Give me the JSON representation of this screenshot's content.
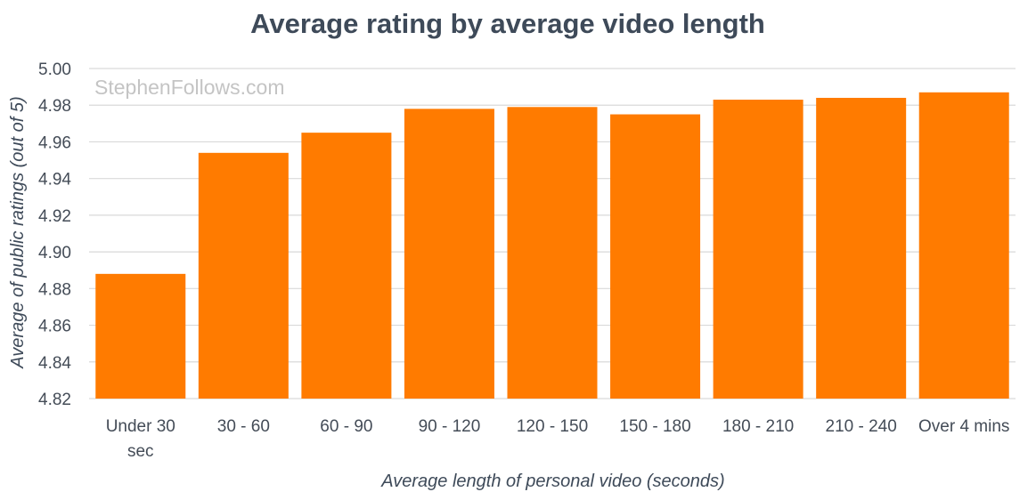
{
  "watermark": "StephenFollows.com",
  "chart_data": {
    "type": "bar",
    "title": "Average rating by average video length",
    "xlabel": "Average length of personal video (seconds)",
    "ylabel": "Average of public ratings (out of 5)",
    "categories": [
      "Under 30 sec",
      "30 - 60",
      "60 - 90",
      "90 - 120",
      "120 - 150",
      "150 - 180",
      "180 - 210",
      "210 - 240",
      "Over 4 mins"
    ],
    "values": [
      4.888,
      4.954,
      4.965,
      4.978,
      4.979,
      4.975,
      4.983,
      4.984,
      4.987
    ],
    "ylim": [
      4.82,
      5.0
    ],
    "yticks": [
      "4.82",
      "4.84",
      "4.86",
      "4.88",
      "4.90",
      "4.92",
      "4.94",
      "4.96",
      "4.98",
      "5.00"
    ],
    "grid": true,
    "bar_color": "#ff7b00"
  }
}
